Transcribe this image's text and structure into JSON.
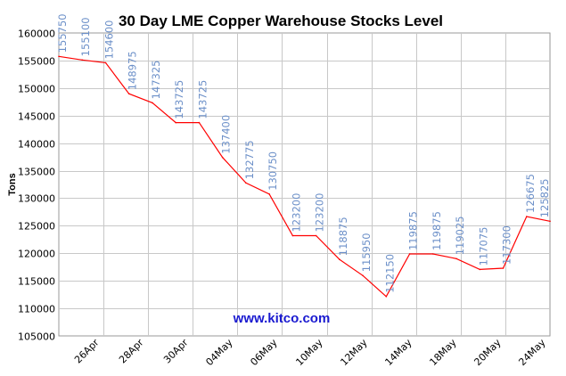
{
  "chart_data": {
    "type": "line",
    "title": "30 Day LME Copper Warehouse Stocks Level",
    "ylabel": "Tons",
    "xlabel": "",
    "watermark": "www.kitco.com",
    "ylim": [
      105000,
      160000
    ],
    "yticks": [
      105000,
      110000,
      115000,
      120000,
      125000,
      130000,
      135000,
      140000,
      145000,
      150000,
      155000,
      160000
    ],
    "xtick_labels": [
      "26Apr",
      "28Apr",
      "30Apr",
      "04May",
      "06May",
      "10May",
      "12May",
      "14May",
      "18May",
      "20May",
      "24May"
    ],
    "grid": true,
    "line_color": "#ff0000",
    "label_color": "#6b8fc8",
    "series": [
      {
        "values": [
          155750,
          155100,
          154600,
          148975,
          147325,
          143725,
          143725,
          137400,
          132775,
          130750,
          123200,
          123200,
          118875,
          115950,
          112150,
          119875,
          119875,
          119025,
          117075,
          117300,
          126675,
          125825
        ]
      }
    ]
  }
}
